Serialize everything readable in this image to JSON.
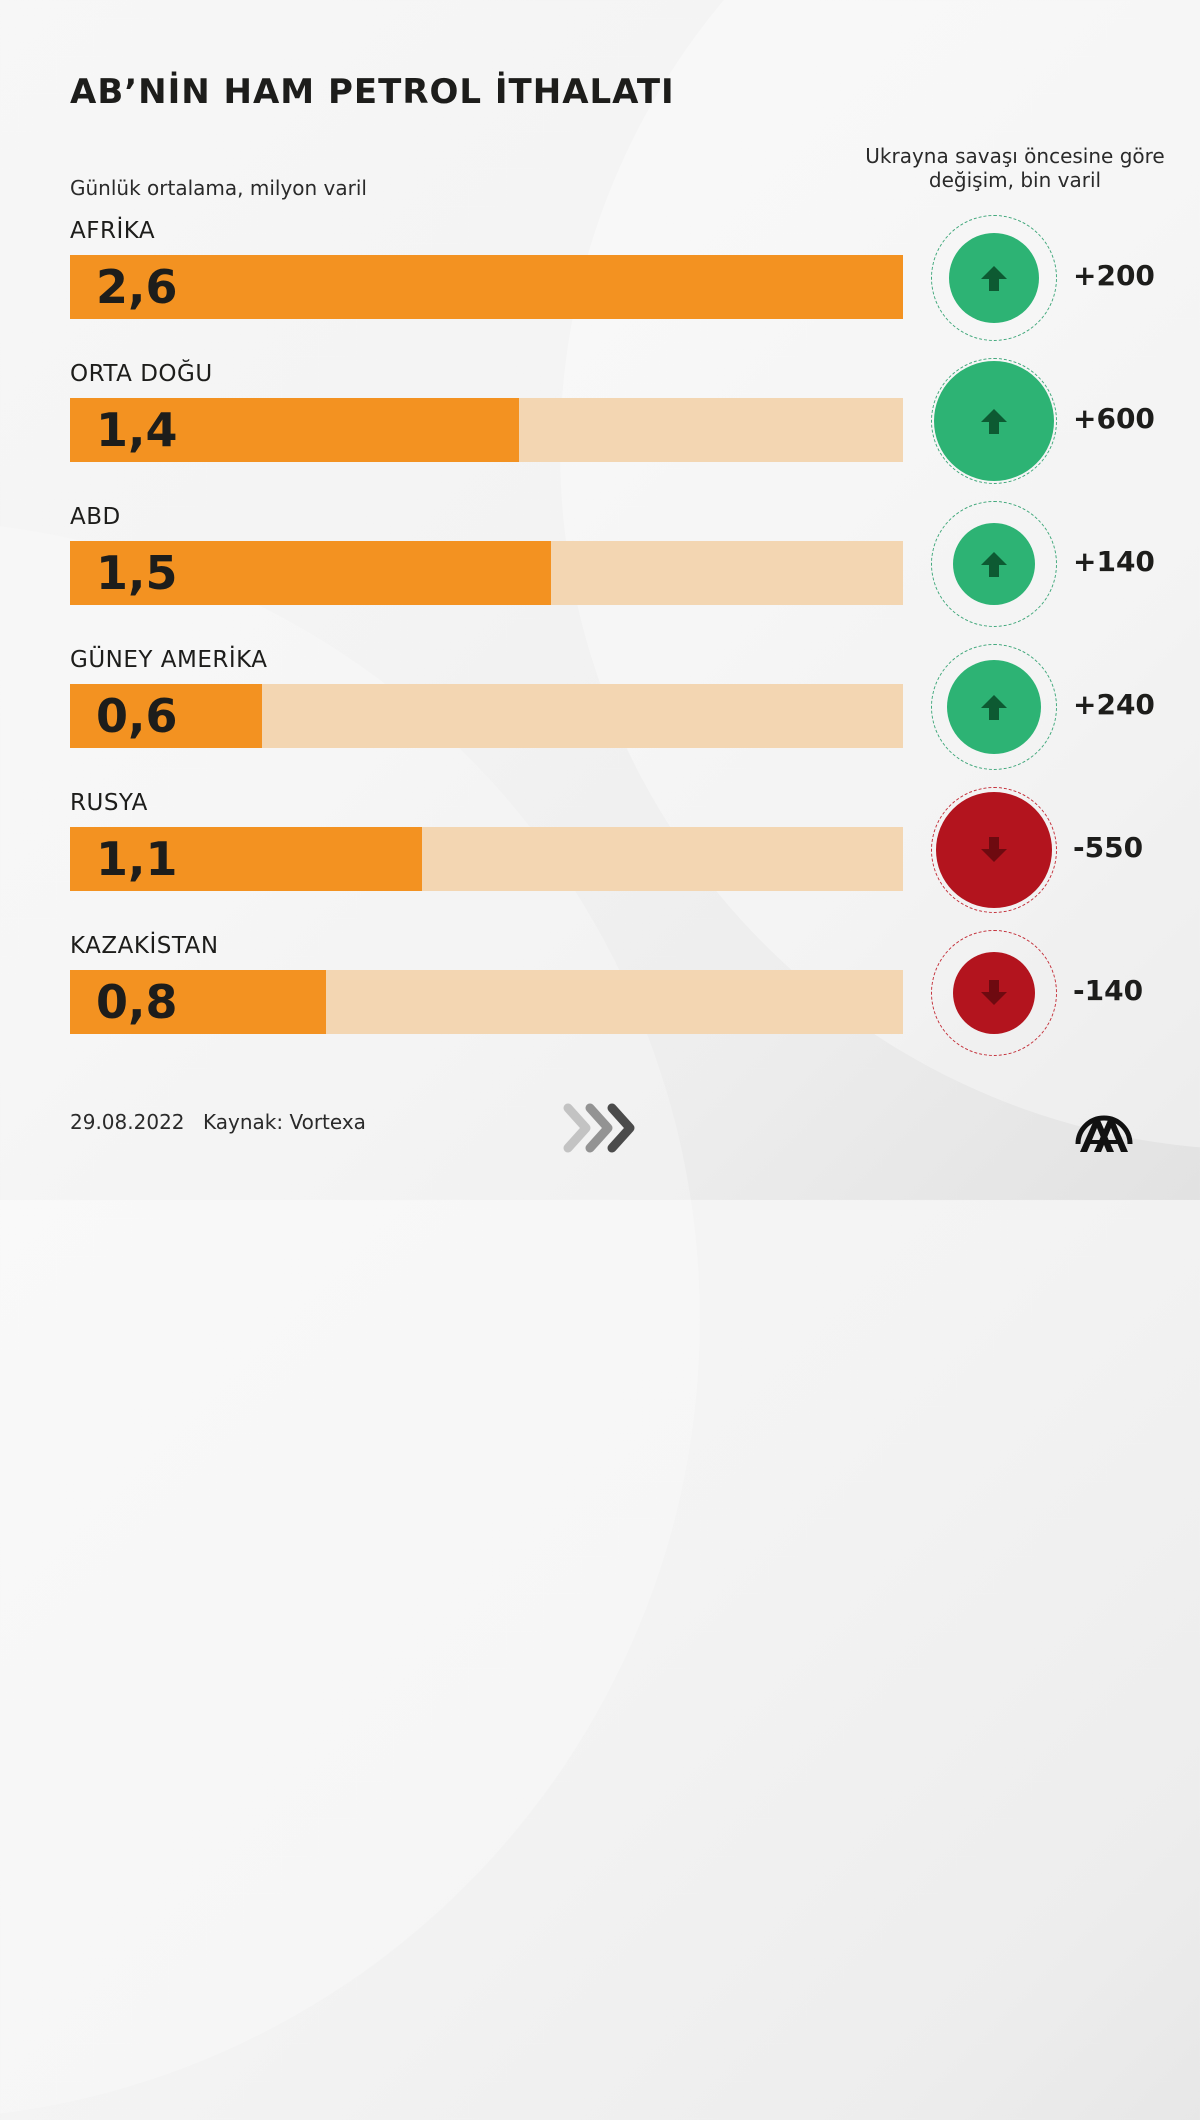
{
  "header": {
    "title": "AB’NİN HAM PETROL İTHALATI",
    "subtitle_left": "Günlük ortalama, milyon varil",
    "subtitle_right": "Ukrayna savaşı öncesine göre değişim, bin varil"
  },
  "colors": {
    "bar_fill": "#f39221",
    "bar_track": "#f3d6b2",
    "increase": "#2db374",
    "increase_arrow": "#0d5a32",
    "decrease": "#b3141e",
    "decrease_arrow": "#6e0a10",
    "text": "#1d1d1b"
  },
  "rows": [
    {
      "label": "AFRİKA",
      "value_label": "2,6",
      "change_label": "+200",
      "direction": "up"
    },
    {
      "label": "ORTA DOĞU",
      "value_label": "1,4",
      "change_label": "+600",
      "direction": "up"
    },
    {
      "label": "ABD",
      "value_label": "1,5",
      "change_label": "+140",
      "direction": "up"
    },
    {
      "label": "GÜNEY AMERİKA",
      "value_label": "0,6",
      "change_label": "+240",
      "direction": "up"
    },
    {
      "label": "RUSYA",
      "value_label": "1,1",
      "change_label": "-550",
      "direction": "down"
    },
    {
      "label": "KAZAKİSTAN",
      "value_label": "0,8",
      "change_label": "-140",
      "direction": "down"
    }
  ],
  "footer": {
    "date": "29.08.2022",
    "source": "Kaynak: Vortexa",
    "next_icon": "chevrons-right-icon",
    "logo": "AA"
  },
  "chart_data": {
    "type": "bar",
    "orientation": "horizontal",
    "title": "AB’NİN HAM PETROL İTHALATI",
    "xlabel": "Günlük ortalama, milyon varil",
    "ylabel": "",
    "xlim": [
      0,
      2.6
    ],
    "grid": false,
    "legend": "none",
    "categories": [
      "AFRİKA",
      "ORTA DOĞU",
      "ABD",
      "GÜNEY AMERİKA",
      "RUSYA",
      "KAZAKİSTAN"
    ],
    "series": [
      {
        "name": "Günlük ortalama ithalat (milyon varil)",
        "values": [
          2.6,
          1.4,
          1.5,
          0.6,
          1.1,
          0.8
        ]
      },
      {
        "name": "Ukrayna savaşı öncesine göre değişim (bin varil)",
        "values": [
          200,
          600,
          140,
          240,
          -550,
          -140
        ]
      }
    ],
    "annotations": [
      "29.08.2022",
      "Kaynak: Vortexa"
    ]
  }
}
